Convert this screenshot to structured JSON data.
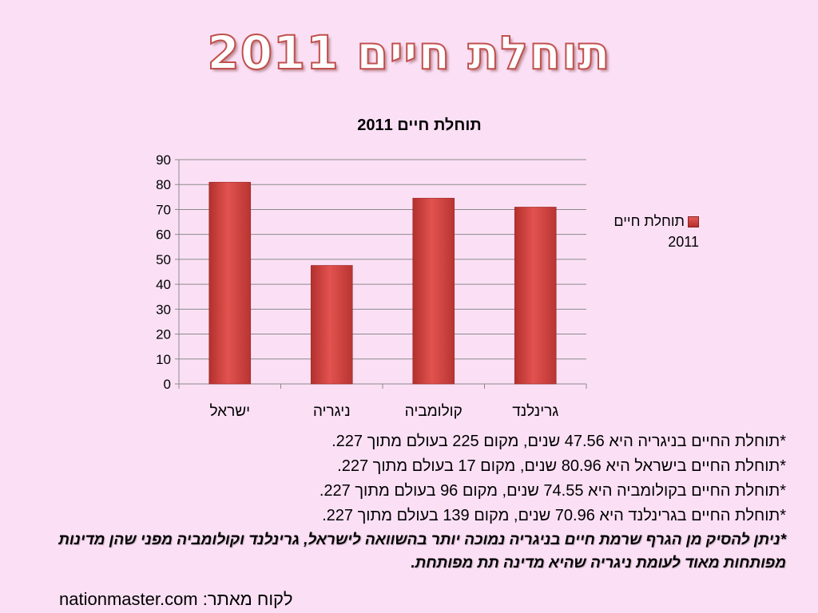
{
  "slide": {
    "title": "תוחלת חיים 2011"
  },
  "chart_data": {
    "type": "bar",
    "title": "תוחלת חיים 2011",
    "categories": [
      "ישראל",
      "ניגריה",
      "קולומביה",
      "גרינלנד"
    ],
    "series": [
      {
        "name": "תוחלת חיים 2011",
        "values": [
          80.96,
          47.56,
          74.55,
          70.96
        ]
      }
    ],
    "ylim": [
      0,
      90
    ],
    "yticks": [
      "0",
      "10",
      "20",
      "30",
      "40",
      "50",
      "60",
      "70",
      "80",
      "90"
    ],
    "grid": true,
    "legend": "right",
    "bar_color": "#c0504d"
  },
  "legend": {
    "line1": "תוחלת חיים",
    "line2": "2011"
  },
  "notes": [
    "*תוחלת החיים בניגריה היא 47.56 שנים, מקום 225 בעולם מתוך 227.",
    "*תוחלת החיים בישראל היא 80.96 שנים, מקום 17 בעולם מתוך 227.",
    "*תוחלת החיים בקולומביה היא 74.55 שנים, מקום 96 בעולם מתוך 227.",
    "*תוחלת החיים בגרינלנד היא 70.96 שנים, מקום 139 בעולם מתוך 227."
  ],
  "conclusion": "*ניתן להסיק מן הגרף שרמת חיים בניגריה נמוכה יותר בהשוואה לישראל, גרינלנד וקולומביה מפני שהן מדינות מפותחות מאוד לעומת ניגריה שהיא מדינה תת מפותחת.",
  "source": "לקוח מאתר: nationmaster.com"
}
